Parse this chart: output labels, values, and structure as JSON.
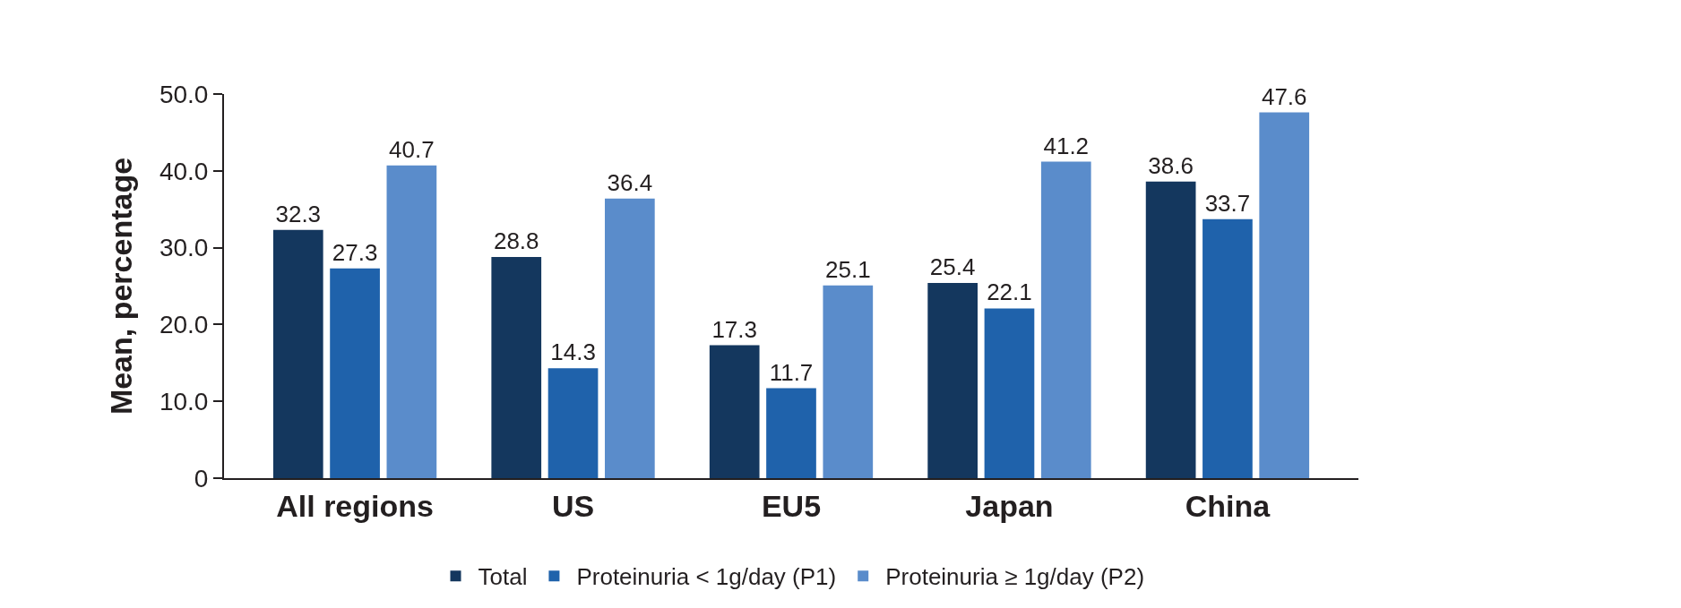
{
  "chart_data": {
    "type": "bar",
    "ylabel": "Mean, percentage",
    "categories": [
      "All regions",
      "US",
      "EU5",
      "Japan",
      "China"
    ],
    "series": [
      {
        "name": "Total",
        "color": "#14375e",
        "values": [
          32.3,
          28.8,
          17.3,
          25.4,
          38.6
        ]
      },
      {
        "name": "Proteinuria < 1g/day (P1)",
        "color": "#1f62ab",
        "values": [
          27.3,
          14.3,
          11.7,
          22.1,
          33.7
        ]
      },
      {
        "name": "Proteinuria ≥ 1g/day (P2)",
        "color": "#5a8ccb",
        "values": [
          40.7,
          36.4,
          25.1,
          41.2,
          47.6
        ]
      }
    ],
    "ylim": [
      0,
      50
    ],
    "yticks": [
      {
        "value": 0,
        "label": "0"
      },
      {
        "value": 10,
        "label": "10.0"
      },
      {
        "value": 20,
        "label": "20.0"
      },
      {
        "value": 30,
        "label": "30.0"
      },
      {
        "value": 40,
        "label": "40.0"
      },
      {
        "value": 50,
        "label": "50.0"
      }
    ],
    "data_labels": true,
    "legend": "bottom"
  }
}
